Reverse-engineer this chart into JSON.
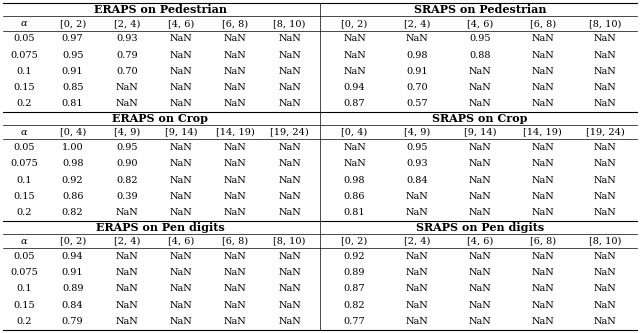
{
  "sections": [
    {
      "title_left": "ERAPS on Pedestrian",
      "title_right": "SRAPS on Pedestrian",
      "col_headers_left": [
        "[0, 2)",
        "[2, 4)",
        "[4, 6)",
        "[6, 8)",
        "[8, 10)"
      ],
      "col_headers_right": [
        "[0, 2)",
        "[2, 4)",
        "[4, 6)",
        "[6, 8)",
        "[8, 10)"
      ],
      "alpha_col": [
        "0.05",
        "0.075",
        "0.1",
        "0.15",
        "0.2"
      ],
      "data_left": [
        [
          "0.97",
          "0.93",
          "NaN",
          "NaN",
          "NaN"
        ],
        [
          "0.95",
          "0.79",
          "NaN",
          "NaN",
          "NaN"
        ],
        [
          "0.91",
          "0.70",
          "NaN",
          "NaN",
          "NaN"
        ],
        [
          "0.85",
          "NaN",
          "NaN",
          "NaN",
          "NaN"
        ],
        [
          "0.81",
          "NaN",
          "NaN",
          "NaN",
          "NaN"
        ]
      ],
      "data_right": [
        [
          "NaN",
          "NaN",
          "0.95",
          "NaN",
          "NaN"
        ],
        [
          "NaN",
          "0.98",
          "0.88",
          "NaN",
          "NaN"
        ],
        [
          "NaN",
          "0.91",
          "NaN",
          "NaN",
          "NaN"
        ],
        [
          "0.94",
          "0.70",
          "NaN",
          "NaN",
          "NaN"
        ],
        [
          "0.87",
          "0.57",
          "NaN",
          "NaN",
          "NaN"
        ]
      ]
    },
    {
      "title_left": "ERAPS on Crop",
      "title_right": "SRAPS on Crop",
      "col_headers_left": [
        "[0, 4)",
        "[4, 9)",
        "[9, 14)",
        "[14, 19)",
        "[19, 24)"
      ],
      "col_headers_right": [
        "[0, 4)",
        "[4, 9)",
        "[9, 14)",
        "[14, 19)",
        "[19, 24)"
      ],
      "alpha_col": [
        "0.05",
        "0.075",
        "0.1",
        "0.15",
        "0.2"
      ],
      "data_left": [
        [
          "1.00",
          "0.95",
          "NaN",
          "NaN",
          "NaN"
        ],
        [
          "0.98",
          "0.90",
          "NaN",
          "NaN",
          "NaN"
        ],
        [
          "0.92",
          "0.82",
          "NaN",
          "NaN",
          "NaN"
        ],
        [
          "0.86",
          "0.39",
          "NaN",
          "NaN",
          "NaN"
        ],
        [
          "0.82",
          "NaN",
          "NaN",
          "NaN",
          "NaN"
        ]
      ],
      "data_right": [
        [
          "NaN",
          "0.95",
          "NaN",
          "NaN",
          "NaN"
        ],
        [
          "NaN",
          "0.93",
          "NaN",
          "NaN",
          "NaN"
        ],
        [
          "0.98",
          "0.84",
          "NaN",
          "NaN",
          "NaN"
        ],
        [
          "0.86",
          "NaN",
          "NaN",
          "NaN",
          "NaN"
        ],
        [
          "0.81",
          "NaN",
          "NaN",
          "NaN",
          "NaN"
        ]
      ]
    },
    {
      "title_left": "ERAPS on Pen digits",
      "title_right": "SRAPS on Pen digits",
      "col_headers_left": [
        "[0, 2)",
        "[2, 4)",
        "[4, 6)",
        "[6, 8)",
        "[8, 10)"
      ],
      "col_headers_right": [
        "[0, 2)",
        "[2, 4)",
        "[4, 6)",
        "[6, 8)",
        "[8, 10)"
      ],
      "alpha_col": [
        "0.05",
        "0.075",
        "0.1",
        "0.15",
        "0.2"
      ],
      "data_left": [
        [
          "0.94",
          "NaN",
          "NaN",
          "NaN",
          "NaN"
        ],
        [
          "0.91",
          "NaN",
          "NaN",
          "NaN",
          "NaN"
        ],
        [
          "0.89",
          "NaN",
          "NaN",
          "NaN",
          "NaN"
        ],
        [
          "0.84",
          "NaN",
          "NaN",
          "NaN",
          "NaN"
        ],
        [
          "0.79",
          "NaN",
          "NaN",
          "NaN",
          "NaN"
        ]
      ],
      "data_right": [
        [
          "0.92",
          "NaN",
          "NaN",
          "NaN",
          "NaN"
        ],
        [
          "0.89",
          "NaN",
          "NaN",
          "NaN",
          "NaN"
        ],
        [
          "0.87",
          "NaN",
          "NaN",
          "NaN",
          "NaN"
        ],
        [
          "0.82",
          "NaN",
          "NaN",
          "NaN",
          "NaN"
        ],
        [
          "0.77",
          "NaN",
          "NaN",
          "NaN",
          "NaN"
        ]
      ]
    }
  ],
  "alpha_label": "α",
  "figsize": [
    6.4,
    3.33
  ],
  "dpi": 100,
  "font_size": 7.0,
  "title_font_size": 8.0,
  "bg_color": "#ffffff",
  "line_color": "#000000",
  "text_color": "#000000"
}
